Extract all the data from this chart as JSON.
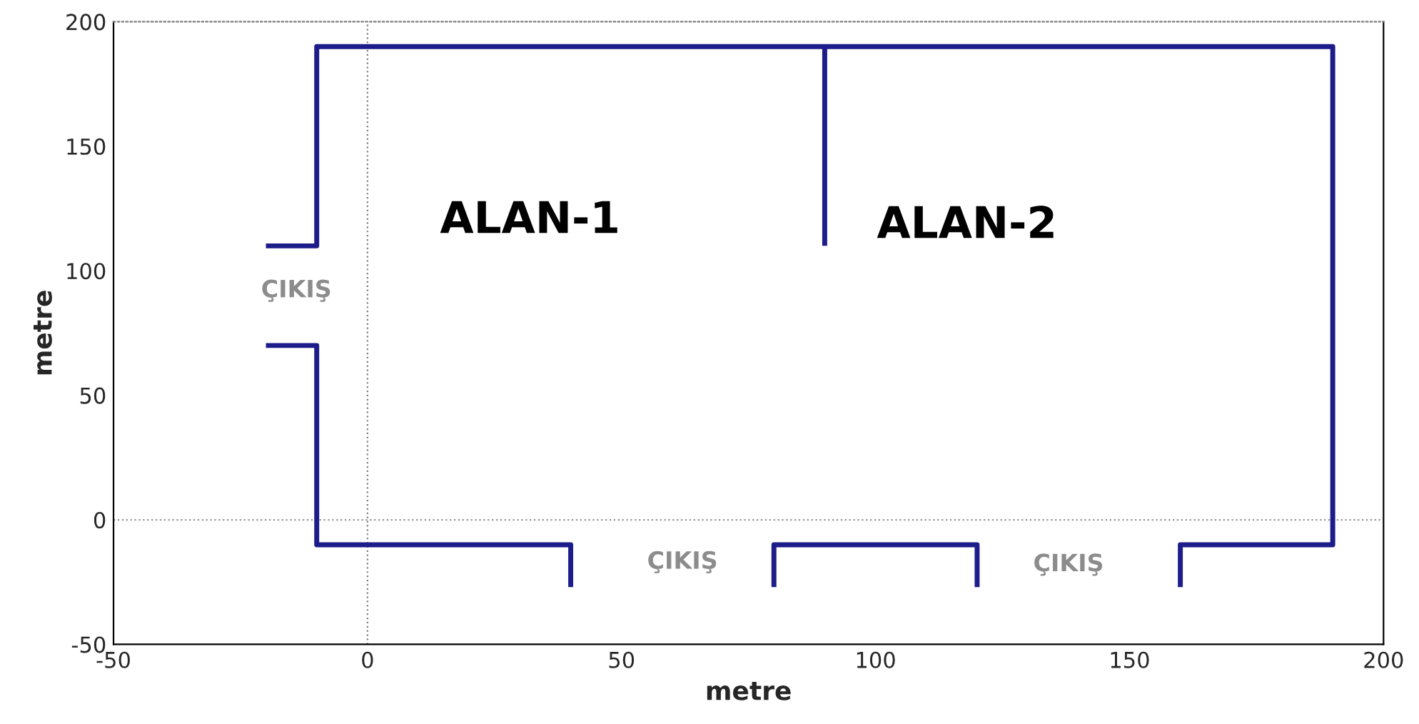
{
  "chart_data": {
    "type": "line",
    "xlabel": "metre",
    "ylabel": "metre",
    "xlim": [
      -50,
      200
    ],
    "ylim": [
      -50,
      200
    ],
    "xticks": [
      -50,
      0,
      50,
      100,
      150,
      200
    ],
    "yticks": [
      -50,
      0,
      50,
      100,
      150,
      200
    ],
    "series": [
      {
        "color": "#1c1c8a",
        "x": [
          -20,
          -10,
          -10,
          190,
          190,
          160,
          160
        ],
        "values": [
          110,
          110,
          190,
          190,
          -10,
          -10,
          -27
        ]
      },
      {
        "color": "#1c1c8a",
        "x": [
          90,
          90
        ],
        "values": [
          190,
          110
        ]
      },
      {
        "color": "#1c1c8a",
        "x": [
          -20,
          -10,
          -10,
          40,
          40
        ],
        "values": [
          70,
          70,
          -10,
          -10,
          -27
        ]
      },
      {
        "color": "#1c1c8a",
        "x": [
          80,
          80,
          120,
          120
        ],
        "values": [
          -27,
          -10,
          -10,
          -27
        ]
      }
    ],
    "ref_lines": [
      {
        "axis": "x",
        "value": 0,
        "line_style": "dotted",
        "color": "#808080"
      },
      {
        "axis": "y",
        "value": 0,
        "line_style": "dotted",
        "color": "#959595"
      }
    ],
    "annotations": [
      "ALAN-1",
      "ALAN-2",
      "ÇIKIŞ",
      "ÇIKIŞ",
      "ÇIKIŞ"
    ],
    "grid": false,
    "legend": false,
    "marker": "none",
    "line_style": "solid"
  }
}
